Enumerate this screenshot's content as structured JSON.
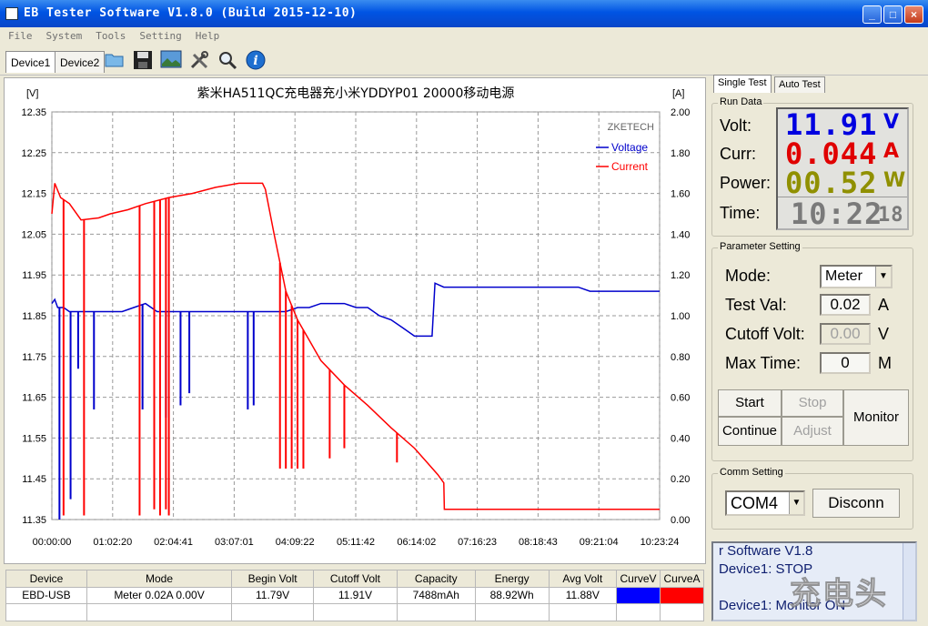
{
  "window": {
    "title": "EB Tester Software V1.8.0 (Build 2015-12-10)",
    "controls": [
      "_",
      "□",
      "×"
    ]
  },
  "menu": [
    "File",
    "System",
    "Tools",
    "Setting",
    "Help"
  ],
  "toolbar": {
    "tabs": [
      "Device1",
      "Device2"
    ],
    "icons": [
      "folder-icon",
      "save-icon",
      "picture-icon",
      "tools-icon",
      "search-icon",
      "info-icon"
    ]
  },
  "chart_data": {
    "type": "line",
    "title": "紫米HA511QC充电器充小米YDDYP01 20000移动电源",
    "left_unit": "[V]",
    "right_unit": "[A]",
    "watermark": "ZKETECH",
    "ylim": [
      11.35,
      12.35
    ],
    "y2lim": [
      0.0,
      2.0
    ],
    "ytick_labels": [
      "12.35",
      "12.25",
      "12.15",
      "12.05",
      "11.95",
      "11.85",
      "11.75",
      "11.65",
      "11.55",
      "11.45",
      "11.35"
    ],
    "y2tick_labels": [
      "2.00",
      "1.80",
      "1.60",
      "1.40",
      "1.20",
      "1.00",
      "0.80",
      "0.60",
      "0.40",
      "0.20",
      "0.00"
    ],
    "xtick_labels": [
      "00:00:00",
      "01:02:20",
      "02:04:41",
      "03:07:01",
      "04:09:22",
      "05:11:42",
      "06:14:02",
      "07:16:23",
      "08:18:43",
      "09:21:04",
      "10:23:24"
    ],
    "grid": true,
    "legend_position": "top-right",
    "series": [
      {
        "name": "Voltage",
        "color": "#0000cc",
        "axis": "left",
        "x_hours": [
          0,
          0.05,
          0.1,
          0.2,
          0.3,
          0.4,
          0.6,
          0.8,
          1.0,
          1.2,
          1.4,
          1.6,
          1.8,
          2.0,
          2.2,
          2.4,
          2.6,
          2.8,
          3.0,
          3.2,
          3.4,
          3.6,
          3.8,
          4.0,
          4.2,
          4.4,
          4.6,
          4.8,
          5.0,
          5.2,
          5.4,
          5.6,
          5.8,
          6.0,
          6.2,
          6.4,
          6.5,
          6.55,
          6.7,
          7.0,
          7.5,
          8.0,
          8.5,
          9.0,
          9.2,
          9.4,
          9.6,
          9.8,
          10.0,
          10.2,
          10.39
        ],
        "values": [
          11.88,
          11.89,
          11.87,
          11.87,
          11.86,
          11.86,
          11.86,
          11.86,
          11.86,
          11.86,
          11.87,
          11.88,
          11.86,
          11.86,
          11.86,
          11.86,
          11.86,
          11.86,
          11.86,
          11.86,
          11.86,
          11.86,
          11.86,
          11.86,
          11.87,
          11.87,
          11.88,
          11.88,
          11.88,
          11.87,
          11.87,
          11.85,
          11.84,
          11.82,
          11.8,
          11.8,
          11.8,
          11.93,
          11.92,
          11.92,
          11.92,
          11.92,
          11.92,
          11.92,
          11.91,
          11.91,
          11.91,
          11.91,
          11.91,
          11.91,
          11.91
        ],
        "dips": [
          {
            "x_hours": 0.13,
            "min": 11.35
          },
          {
            "x_hours": 0.32,
            "min": 11.4
          },
          {
            "x_hours": 0.45,
            "min": 11.72
          },
          {
            "x_hours": 0.72,
            "min": 11.62
          },
          {
            "x_hours": 1.55,
            "min": 11.62
          },
          {
            "x_hours": 1.95,
            "min": 11.6
          },
          {
            "x_hours": 2.2,
            "min": 11.63
          },
          {
            "x_hours": 2.35,
            "min": 11.66
          },
          {
            "x_hours": 3.35,
            "min": 11.62
          },
          {
            "x_hours": 3.45,
            "min": 11.63
          }
        ]
      },
      {
        "name": "Current",
        "color": "#ff0000",
        "axis": "right",
        "x_hours": [
          0,
          0.05,
          0.15,
          0.3,
          0.5,
          0.8,
          1.0,
          1.3,
          1.6,
          2.0,
          2.4,
          2.8,
          3.2,
          3.6,
          3.65,
          3.8,
          4.0,
          4.2,
          4.4,
          4.6,
          4.8,
          5.0,
          5.4,
          5.8,
          6.2,
          6.6,
          6.7,
          6.71,
          7.0,
          8.0,
          9.0,
          10.0,
          10.39
        ],
        "values": [
          1.5,
          1.65,
          1.58,
          1.55,
          1.47,
          1.48,
          1.5,
          1.52,
          1.55,
          1.58,
          1.6,
          1.63,
          1.65,
          1.65,
          1.62,
          1.4,
          1.12,
          0.98,
          0.88,
          0.78,
          0.72,
          0.66,
          0.56,
          0.45,
          0.35,
          0.22,
          0.18,
          0.05,
          0.05,
          0.05,
          0.05,
          0.05,
          0.05
        ],
        "dips": [
          {
            "x_hours": 0.2,
            "min": 0.02
          },
          {
            "x_hours": 0.55,
            "min": 0.02
          },
          {
            "x_hours": 1.5,
            "min": 0.02
          },
          {
            "x_hours": 1.75,
            "min": 0.05
          },
          {
            "x_hours": 1.85,
            "min": 0.02
          },
          {
            "x_hours": 1.95,
            "min": 0.05
          },
          {
            "x_hours": 2.0,
            "min": 0.02
          },
          {
            "x_hours": 3.9,
            "min": 0.25
          },
          {
            "x_hours": 4.0,
            "min": 0.25
          },
          {
            "x_hours": 4.1,
            "min": 0.25
          },
          {
            "x_hours": 4.2,
            "min": 0.25
          },
          {
            "x_hours": 4.3,
            "min": 0.25
          },
          {
            "x_hours": 4.75,
            "min": 0.3
          },
          {
            "x_hours": 5.0,
            "min": 0.35
          },
          {
            "x_hours": 5.9,
            "min": 0.28
          }
        ]
      }
    ]
  },
  "tabs_right": [
    "Single Test",
    "Auto Test"
  ],
  "run_data": {
    "title": "Run Data",
    "volt": {
      "label": "Volt:",
      "value": "11.91",
      "unit": "V",
      "color": "#0000e0"
    },
    "curr": {
      "label": "Curr:",
      "value": "0.044",
      "unit": "A",
      "color": "#e00000"
    },
    "power": {
      "label": "Power:",
      "value": "00.52",
      "unit": "W",
      "color": "#909000"
    },
    "time": {
      "label": "Time:",
      "value": "10:22",
      "seconds": "18",
      "color": "#7a7a7a"
    }
  },
  "params": {
    "title": "Parameter Setting",
    "mode_label": "Mode:",
    "mode_value": "Meter",
    "testval_label": "Test Val:",
    "testval_value": "0.02",
    "testval_unit": "A",
    "cutoff_label": "Cutoff Volt:",
    "cutoff_value": "0.00",
    "cutoff_unit": "V",
    "maxtime_label": "Max Time:",
    "maxtime_value": "0",
    "maxtime_unit": "M",
    "start": "Start",
    "stop": "Stop",
    "continue": "Continue",
    "adjust": "Adjust",
    "monitor": "Monitor"
  },
  "comm": {
    "title": "Comm Setting",
    "port": "COM4",
    "disconnect": "Disconn"
  },
  "log": {
    "lines": [
      "r Software V1.8",
      "Device1: STOP",
      "Device1: Monitor ON"
    ],
    "watermark": "充电头"
  },
  "table": {
    "headers": [
      "Device",
      "Mode",
      "Begin Volt",
      "Cutoff Volt",
      "Capacity",
      "Energy",
      "Avg Volt",
      "CurveV",
      "CurveA"
    ],
    "row": [
      "EBD-USB",
      "Meter 0.02A  0.00V",
      "11.79V",
      "11.91V",
      "7488mAh",
      "88.92Wh",
      "11.88V"
    ],
    "curve_colors": {
      "voltage": "#0000ff",
      "current": "#ff0000"
    }
  }
}
